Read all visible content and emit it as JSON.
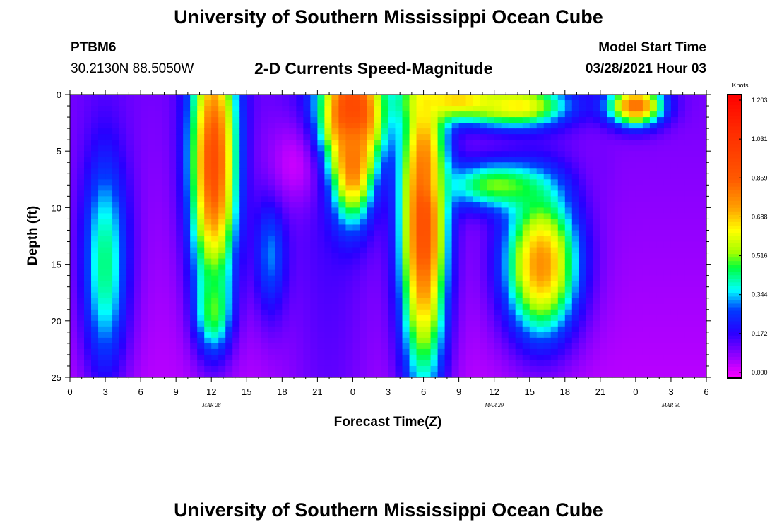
{
  "header": {
    "title": "University of Southern Mississippi Ocean Cube",
    "station_id": "PTBM6",
    "station_coords": "30.2130N  88.5050W",
    "model_start_label": "Model Start Time",
    "model_start_value": "03/28/2021 Hour 03"
  },
  "footer": {
    "title": "University of Southern Mississippi Ocean Cube"
  },
  "chart_data": {
    "type": "heatmap",
    "title": "2-D Currents Speed-Magnitude",
    "xlabel": "Forecast Time(Z)",
    "ylabel": "Depth (ft)",
    "x_ticks": [
      "0",
      "3",
      "6",
      "9",
      "12",
      "15",
      "18",
      "21",
      "0",
      "3",
      "6",
      "9",
      "12",
      "15",
      "18",
      "21",
      "0",
      "3",
      "6"
    ],
    "x_range_hours": [
      0,
      54
    ],
    "y_ticks": [
      "0",
      "5",
      "10",
      "15",
      "20",
      "25"
    ],
    "y_range_ft": [
      0,
      25
    ],
    "date_labels": [
      {
        "text": "MAR 28",
        "hour": 12
      },
      {
        "text": "MAR 29",
        "hour": 36
      },
      {
        "text": "MAR 30",
        "hour": 51
      }
    ],
    "colorbar": {
      "unit": "Knots",
      "range": [
        0.0,
        1.203
      ],
      "tick_labels": [
        "1.203",
        "1.031",
        "0.859",
        "0.688",
        "0.516",
        "0.344",
        "0.172",
        "0.000"
      ]
    },
    "features": [
      {
        "hour": 3,
        "depth": 15,
        "value": 0.44,
        "sx": 1.4,
        "sd": 7
      },
      {
        "hour": 12.2,
        "depth": 6,
        "value": 0.9,
        "sx": 1.4,
        "sd": 8
      },
      {
        "hour": 12.2,
        "depth": 19,
        "value": 0.5,
        "sx": 1.0,
        "sd": 2.5
      },
      {
        "hour": 17,
        "depth": 14,
        "value": 0.32,
        "sx": 1.0,
        "sd": 4
      },
      {
        "hour": 19.2,
        "depth": 6,
        "value": 0.04,
        "sx": 1.8,
        "sd": 2.8
      },
      {
        "hour": 24,
        "depth": 1.5,
        "value": 1.0,
        "sx": 1.8,
        "sd": 3
      },
      {
        "hour": 24,
        "depth": 6,
        "value": 0.8,
        "sx": 1.2,
        "sd": 3.5
      },
      {
        "hour": 30,
        "depth": 11,
        "value": 0.9,
        "sx": 1.4,
        "sd": 10
      },
      {
        "hour": 33,
        "depth": 0.5,
        "value": 0.68,
        "sx": 3,
        "sd": 1.2
      },
      {
        "hour": 38,
        "depth": 1,
        "value": 0.64,
        "sx": 3,
        "sd": 1.3
      },
      {
        "hour": 36,
        "depth": 8,
        "value": 0.5,
        "sx": 3,
        "sd": 1.5
      },
      {
        "hour": 40,
        "depth": 15,
        "value": 0.75,
        "sx": 2.2,
        "sd": 4.5
      },
      {
        "hour": 45,
        "depth": 6,
        "value": 0.12,
        "sx": 0.8,
        "sd": 1.8
      },
      {
        "hour": 48,
        "depth": 1,
        "value": 0.82,
        "sx": 1.6,
        "sd": 1.2
      }
    ]
  }
}
